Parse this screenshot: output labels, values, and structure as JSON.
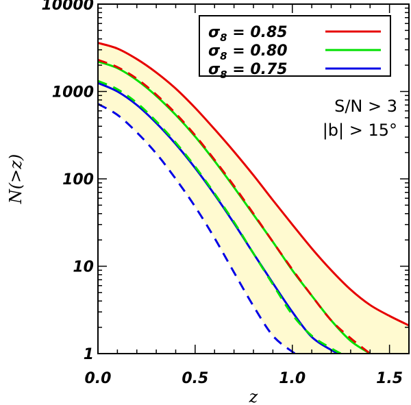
{
  "chart_data": {
    "type": "line",
    "xlabel": "z",
    "ylabel": "N(>z)",
    "xscale": "linear",
    "yscale": "log",
    "xlim": [
      0.0,
      1.6
    ],
    "ylim": [
      1,
      10000
    ],
    "x_ticks": [
      {
        "value": 0.0,
        "label": "0.0"
      },
      {
        "value": 0.5,
        "label": "0.5"
      },
      {
        "value": 1.0,
        "label": "1.0"
      },
      {
        "value": 1.5,
        "label": "1.5"
      }
    ],
    "y_ticks": [
      {
        "value": 1,
        "label": "1"
      },
      {
        "value": 10,
        "label": "10"
      },
      {
        "value": 100,
        "label": "100"
      },
      {
        "value": 1000,
        "label": "1000"
      },
      {
        "value": 10000,
        "label": "10000"
      }
    ],
    "shaded_band": {
      "color": "#fffad0",
      "lower_series": "sigma8_0.75_dashed",
      "upper_series": "sigma8_0.85_solid"
    },
    "legend": {
      "placement": "top-right",
      "entries": [
        {
          "symbol": "σ",
          "subscript": "8",
          "text": " = 0.85",
          "color": "#e60000"
        },
        {
          "symbol": "σ",
          "subscript": "8",
          "text": " = 0.80",
          "color": "#00e000"
        },
        {
          "symbol": "σ",
          "subscript": "8",
          "text": " = 0.75",
          "color": "#0000e6"
        }
      ]
    },
    "annotations": [
      "S/N > 3",
      "|b| > 15°"
    ],
    "series": [
      {
        "name": "sigma8_0.85_solid",
        "sigma8": 0.85,
        "style": "solid",
        "color": "#e60000",
        "points": [
          [
            0.0,
            3600
          ],
          [
            0.1,
            3100
          ],
          [
            0.2,
            2350
          ],
          [
            0.3,
            1650
          ],
          [
            0.4,
            1080
          ],
          [
            0.5,
            650
          ],
          [
            0.6,
            370
          ],
          [
            0.7,
            205
          ],
          [
            0.8,
            110
          ],
          [
            0.9,
            57
          ],
          [
            1.0,
            30
          ],
          [
            1.1,
            16
          ],
          [
            1.2,
            9.0
          ],
          [
            1.3,
            5.4
          ],
          [
            1.4,
            3.6
          ],
          [
            1.5,
            2.7
          ],
          [
            1.6,
            2.1
          ]
        ]
      },
      {
        "name": "sigma8_0.80_solid",
        "sigma8": 0.8,
        "style": "solid",
        "color": "#00e000",
        "points": [
          [
            0.0,
            2200
          ],
          [
            0.1,
            1850
          ],
          [
            0.2,
            1350
          ],
          [
            0.3,
            890
          ],
          [
            0.4,
            540
          ],
          [
            0.5,
            305
          ],
          [
            0.6,
            160
          ],
          [
            0.7,
            80
          ],
          [
            0.8,
            39
          ],
          [
            0.9,
            19
          ],
          [
            1.0,
            9.0
          ],
          [
            1.1,
            4.6
          ],
          [
            1.2,
            2.4
          ],
          [
            1.3,
            1.4
          ],
          [
            1.4,
            1.0
          ]
        ]
      },
      {
        "name": "sigma8_0.75_solid",
        "sigma8": 0.75,
        "style": "solid",
        "color": "#0000e6",
        "points": [
          [
            0.0,
            1250
          ],
          [
            0.1,
            1000
          ],
          [
            0.2,
            700
          ],
          [
            0.3,
            435
          ],
          [
            0.4,
            250
          ],
          [
            0.5,
            133
          ],
          [
            0.6,
            66
          ],
          [
            0.7,
            31
          ],
          [
            0.8,
            14
          ],
          [
            0.9,
            6.4
          ],
          [
            1.0,
            3.0
          ],
          [
            1.1,
            1.55
          ],
          [
            1.2,
            1.1
          ],
          [
            1.24,
            1.0
          ]
        ]
      },
      {
        "name": "sigma8_0.85_dashed",
        "sigma8": 0.85,
        "style": "dashed",
        "color": "#e60000",
        "points": [
          [
            0.0,
            2300
          ],
          [
            0.1,
            1900
          ],
          [
            0.2,
            1400
          ],
          [
            0.3,
            920
          ],
          [
            0.4,
            560
          ],
          [
            0.5,
            315
          ],
          [
            0.6,
            165
          ],
          [
            0.7,
            83
          ],
          [
            0.8,
            40
          ],
          [
            0.9,
            19
          ],
          [
            1.0,
            9.2
          ],
          [
            1.1,
            4.6
          ],
          [
            1.2,
            2.4
          ],
          [
            1.3,
            1.5
          ],
          [
            1.4,
            1.0
          ]
        ]
      },
      {
        "name": "sigma8_0.80_dashed",
        "sigma8": 0.8,
        "style": "dashed",
        "color": "#00e000",
        "points": [
          [
            0.0,
            1320
          ],
          [
            0.1,
            1060
          ],
          [
            0.2,
            740
          ],
          [
            0.3,
            455
          ],
          [
            0.4,
            260
          ],
          [
            0.5,
            138
          ],
          [
            0.6,
            68
          ],
          [
            0.7,
            32
          ],
          [
            0.8,
            14
          ],
          [
            0.9,
            6.2
          ],
          [
            1.0,
            2.8
          ],
          [
            1.1,
            1.6
          ],
          [
            1.2,
            1.15
          ],
          [
            1.25,
            1.0
          ]
        ]
      },
      {
        "name": "sigma8_0.75_dashed",
        "sigma8": 0.75,
        "style": "dashed",
        "color": "#0000e6",
        "points": [
          [
            0.0,
            720
          ],
          [
            0.1,
            540
          ],
          [
            0.2,
            340
          ],
          [
            0.3,
            195
          ],
          [
            0.4,
            100
          ],
          [
            0.5,
            48
          ],
          [
            0.6,
            21
          ],
          [
            0.7,
            8.5
          ],
          [
            0.8,
            3.5
          ],
          [
            0.9,
            1.6
          ],
          [
            1.0,
            1.05
          ],
          [
            1.02,
            1.0
          ]
        ]
      }
    ]
  }
}
